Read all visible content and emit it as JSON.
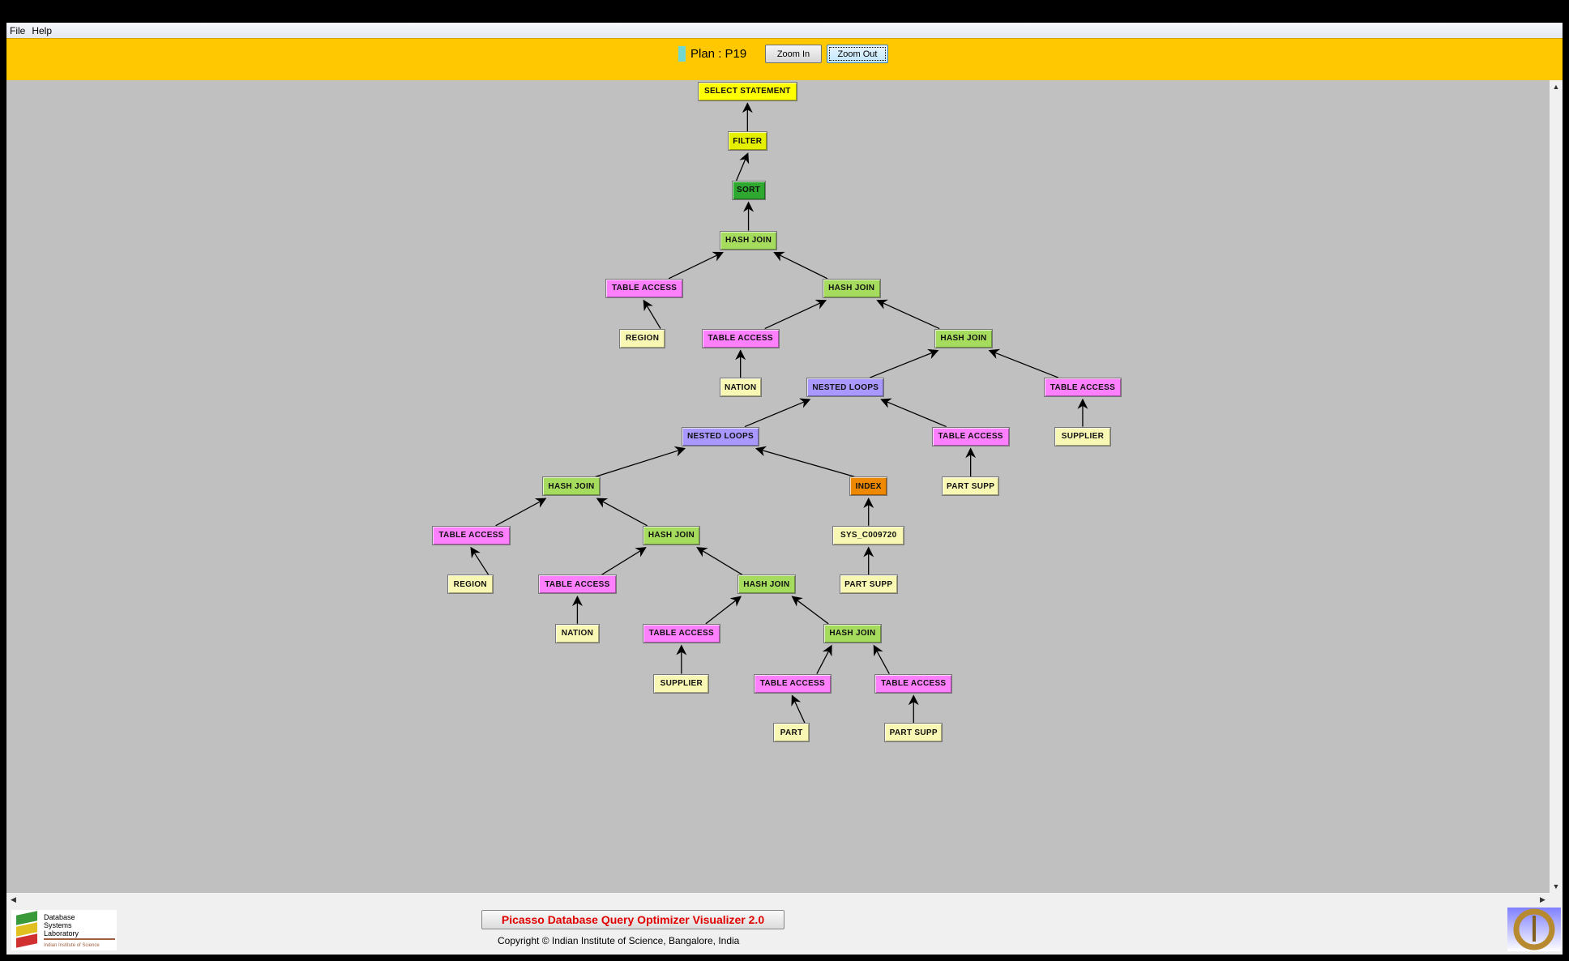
{
  "menu": [
    "File",
    "Help"
  ],
  "toolbar": {
    "plan_label": "Plan : P19",
    "zoom_in": "Zoom In",
    "zoom_out": "Zoom Out",
    "plan_color": "#70d8d0"
  },
  "footer": {
    "title": "Picasso Database Query Optimizer Visualizer 2.0",
    "copyright": "Copyright © Indian Institute of Science, Bangalore, India",
    "logo_text": [
      "Database",
      "Systems",
      "Laboratory",
      "Indian Institute of Science"
    ]
  },
  "node_colors": {
    "select": "#ffff00",
    "filter": "#e4f000",
    "sort": "#2ea82e",
    "join": "#a6dc5e",
    "access": "#ff80ff",
    "relation": "#f8f8b4",
    "loops": "#a898ff",
    "index": "#ee8800"
  },
  "plan_tree": [
    {
      "id": 1,
      "label": "SELECT STATEMENT",
      "type": "select",
      "parent": null
    },
    {
      "id": 2,
      "label": "FILTER",
      "type": "filter",
      "parent": 1
    },
    {
      "id": 3,
      "label": "SORT",
      "type": "sort",
      "parent": 2
    },
    {
      "id": 4,
      "label": "HASH JOIN",
      "type": "join",
      "parent": 3
    },
    {
      "id": 5,
      "label": "TABLE ACCESS",
      "type": "access",
      "parent": 4
    },
    {
      "id": 6,
      "label": "REGION",
      "type": "relation",
      "parent": 5
    },
    {
      "id": 7,
      "label": "HASH JOIN",
      "type": "join",
      "parent": 4
    },
    {
      "id": 8,
      "label": "TABLE ACCESS",
      "type": "access",
      "parent": 7
    },
    {
      "id": 9,
      "label": "NATION",
      "type": "relation",
      "parent": 8
    },
    {
      "id": 10,
      "label": "HASH JOIN",
      "type": "join",
      "parent": 7
    },
    {
      "id": 11,
      "label": "NESTED LOOPS",
      "type": "loops",
      "parent": 10
    },
    {
      "id": 12,
      "label": "TABLE ACCESS",
      "type": "access",
      "parent": 10
    },
    {
      "id": 13,
      "label": "SUPPLIER",
      "type": "relation",
      "parent": 12
    },
    {
      "id": 14,
      "label": "NESTED LOOPS",
      "type": "loops",
      "parent": 11
    },
    {
      "id": 15,
      "label": "TABLE ACCESS",
      "type": "access",
      "parent": 11
    },
    {
      "id": 16,
      "label": "PART SUPP",
      "type": "relation",
      "parent": 15
    },
    {
      "id": 17,
      "label": "HASH JOIN",
      "type": "join",
      "parent": 14
    },
    {
      "id": 18,
      "label": "INDEX",
      "type": "index",
      "parent": 14
    },
    {
      "id": 19,
      "label": "TABLE ACCESS",
      "type": "access",
      "parent": 17
    },
    {
      "id": 20,
      "label": "REGION",
      "type": "relation",
      "parent": 19
    },
    {
      "id": 21,
      "label": "HASH JOIN",
      "type": "join",
      "parent": 17
    },
    {
      "id": 22,
      "label": "SYS_C009720",
      "type": "relation",
      "parent": 18
    },
    {
      "id": 23,
      "label": "PART SUPP",
      "type": "relation",
      "parent": 22
    },
    {
      "id": 24,
      "label": "TABLE ACCESS",
      "type": "access",
      "parent": 21
    },
    {
      "id": 25,
      "label": "NATION",
      "type": "relation",
      "parent": 24
    },
    {
      "id": 26,
      "label": "HASH JOIN",
      "type": "join",
      "parent": 21
    },
    {
      "id": 27,
      "label": "TABLE ACCESS",
      "type": "access",
      "parent": 26
    },
    {
      "id": 28,
      "label": "SUPPLIER",
      "type": "relation",
      "parent": 27
    },
    {
      "id": 29,
      "label": "HASH JOIN",
      "type": "join",
      "parent": 26
    },
    {
      "id": 30,
      "label": "TABLE ACCESS",
      "type": "access",
      "parent": 29
    },
    {
      "id": 31,
      "label": "PART",
      "type": "relation",
      "parent": 30
    },
    {
      "id": 32,
      "label": "TABLE ACCESS",
      "type": "access",
      "parent": 29
    },
    {
      "id": 33,
      "label": "PART SUPP",
      "type": "relation",
      "parent": 32
    }
  ]
}
